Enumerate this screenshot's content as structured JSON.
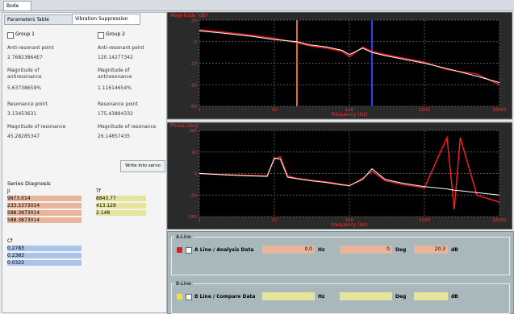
{
  "tabs": {
    "main": "Bode",
    "left": [
      "Parameters Table",
      "Vibration Suppression"
    ]
  },
  "groups": [
    {
      "label": "Group 1",
      "fields": [
        {
          "label": "Anti-resonant point",
          "value": "2.76823864E7"
        },
        {
          "label": "Magnitude of antiresonance",
          "value": "5.63738659%"
        },
        {
          "label": "Resonance point",
          "value": "3.13453631"
        },
        {
          "label": "Magnitude of resonance",
          "value": "45.28285347"
        }
      ]
    },
    {
      "label": "Group 2",
      "fields": [
        {
          "label": "Anti-resonant point",
          "value": "120.14277342"
        },
        {
          "label": "Magnitude of antiresonance",
          "value": "1.11614654%"
        },
        {
          "label": "Resonance point",
          "value": "175.43894332"
        },
        {
          "label": "Magnitude of resonance",
          "value": "26.14857435"
        }
      ]
    }
  ],
  "write_button": "Write Into servo",
  "diagnosis": {
    "title": "Series Diagnosis",
    "ji_label": "Ji",
    "ji_values": [
      "9873.014",
      "233.5373014",
      "588.3873014",
      "588.3873014"
    ],
    "tf_label": "Tf",
    "tf_values": [
      "8843.77",
      "413.129",
      "2.148"
    ],
    "cf_label": "Cf",
    "cf_values": [
      "0.2783",
      "0.2383",
      "0.0323"
    ]
  },
  "plots": [
    {
      "title": "Magnitude (dB)",
      "xlabel": "Frequency (Hz)",
      "log_x": true,
      "xlim": [
        1,
        10000
      ],
      "xticks": [
        1,
        10,
        100,
        1000,
        10000
      ],
      "ylim": [
        -60,
        20
      ],
      "yticks": [
        -60,
        -40,
        -20,
        0,
        20
      ],
      "grid": true,
      "x": [
        1,
        2,
        5,
        10,
        20,
        30,
        50,
        80,
        100,
        150,
        200,
        300,
        500,
        1000,
        2000,
        5000,
        10000
      ],
      "series": [
        {
          "color": "#ff2020",
          "values": [
            11,
            9,
            6,
            3,
            -1,
            -4,
            -6,
            -9,
            -14,
            -5,
            -9,
            -12,
            -15,
            -19,
            -26,
            -30,
            -40
          ]
        },
        {
          "color": "#ffffff",
          "values": [
            10,
            8,
            5,
            2,
            0,
            -3,
            -5,
            -8,
            -12,
            -6,
            -10,
            -13,
            -16,
            -20,
            -25,
            -32,
            -38
          ]
        }
      ],
      "markers": [
        {
          "x": 20,
          "color": "#e07020"
        },
        {
          "x": 200,
          "color": "#3040ff"
        }
      ]
    },
    {
      "title": "Phase (deg)",
      "xlabel": "Frequency (Hz)",
      "log_x": true,
      "xlim": [
        1,
        10000
      ],
      "xticks": [
        1,
        10,
        100,
        1000,
        10000
      ],
      "ylim": [
        -180,
        180
      ],
      "yticks": [
        -180,
        -90,
        0,
        90,
        180
      ],
      "grid": true,
      "x": [
        1,
        2,
        5,
        8,
        10,
        12,
        15,
        20,
        30,
        50,
        80,
        100,
        150,
        200,
        300,
        500,
        1000,
        2000,
        2500,
        3000,
        5000,
        10000
      ],
      "series": [
        {
          "color": "#ff2020",
          "values": [
            0,
            -4,
            -8,
            -10,
            60,
            70,
            -10,
            -20,
            -28,
            -35,
            -45,
            -52,
            -20,
            10,
            -30,
            -45,
            -60,
            150,
            -150,
            150,
            -90,
            -120
          ]
        },
        {
          "color": "#ffffff",
          "values": [
            0,
            -5,
            -10,
            -12,
            65,
            60,
            -15,
            -22,
            -30,
            -38,
            -48,
            -50,
            -25,
            20,
            -25,
            -40,
            -55,
            -65,
            -70,
            -72,
            -80,
            -90
          ]
        }
      ],
      "markers": []
    }
  ],
  "cursor_panel": {
    "lines": [
      {
        "header": "A-Line",
        "label": "A Line / Analysis Data",
        "color": "#e02020",
        "field_color": "#e8b49a",
        "freq": "0.0",
        "freq_unit": "Hz",
        "phase": "0",
        "phase_unit": "Deg",
        "mag": "20.3",
        "mag_unit": "dB"
      },
      {
        "header": "B-Line",
        "label": "B Line / Compare Data",
        "color": "#f0e040",
        "field_color": "#e4e49a",
        "freq_unit": "Hz",
        "phase_unit": "Deg",
        "mag_unit": "dB"
      }
    ]
  }
}
